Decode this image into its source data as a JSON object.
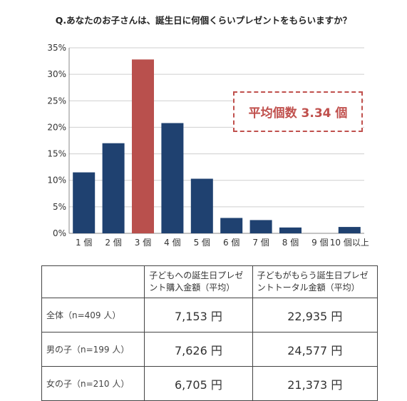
{
  "chart_data": {
    "type": "bar",
    "title": "Q.あなたのお子さんは、誕生日に何個くらいプレゼントをもらいますか？",
    "categories": [
      "1 個",
      "2 個",
      "3 個",
      "4 個",
      "5 個",
      "6 個",
      "7 個",
      "8 個",
      "9 個",
      "10 個以上"
    ],
    "values": [
      11.5,
      17.0,
      32.8,
      20.8,
      10.3,
      2.9,
      2.5,
      1.1,
      0,
      1.2
    ],
    "yticks": [
      "0%",
      "5%",
      "10%",
      "15%",
      "20%",
      "25%",
      "30%",
      "35%"
    ],
    "ylim": [
      0,
      35
    ],
    "grid": true,
    "highlight_index": 2,
    "colors": {
      "bar": "#1f4170",
      "highlight": "#b9504d"
    },
    "annotation": "平均個数 3.34 個"
  },
  "table": {
    "headers": [
      "",
      "子どもへの誕生日プレゼント購入金額（平均）",
      "子どもがもらう誕生日プレゼントトータル金額（平均）"
    ],
    "rows": [
      {
        "label": "全体（n=409 人）",
        "purchase": "7,153 円",
        "total": "22,935 円"
      },
      {
        "label": "男の子（n=199 人）",
        "purchase": "7,626 円",
        "total": "24,577 円"
      },
      {
        "label": "女の子（n=210 人）",
        "purchase": "6,705 円",
        "total": "21,373 円"
      }
    ]
  }
}
